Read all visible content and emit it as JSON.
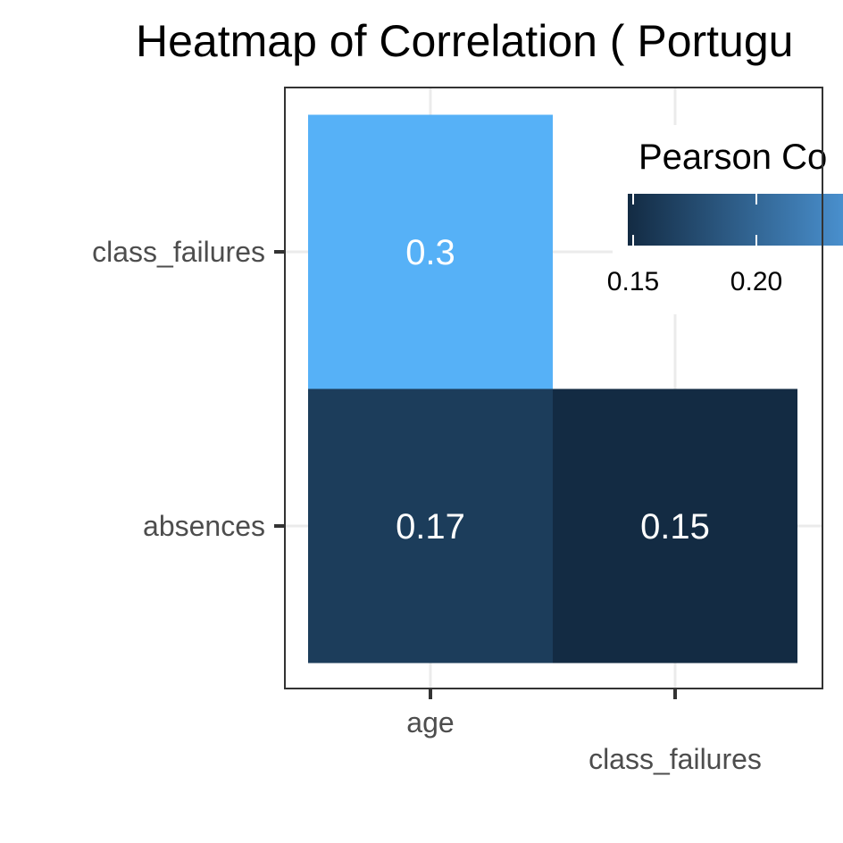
{
  "chart_data": {
    "type": "heatmap",
    "title": "Heatmap of Correlation ( Portugu",
    "x_categories": [
      "age",
      "class_failures"
    ],
    "y_categories": [
      "class_failures",
      "absences"
    ],
    "cells": [
      {
        "x": "age",
        "y": "class_failures",
        "value": 0.3,
        "label": "0.3"
      },
      {
        "x": "age",
        "y": "absences",
        "value": 0.17,
        "label": "0.17"
      },
      {
        "x": "class_failures",
        "y": "absences",
        "value": 0.15,
        "label": "0.15"
      }
    ],
    "legend": {
      "title": "Pearson Co",
      "tick_labels": [
        "0.15",
        "0.20"
      ],
      "tick_values": [
        0.15,
        0.2
      ],
      "range": [
        0.15,
        0.3
      ],
      "low_color": "#132b43",
      "high_color": "#56b1f7",
      "placement": "inside top-right"
    },
    "grid": true
  }
}
